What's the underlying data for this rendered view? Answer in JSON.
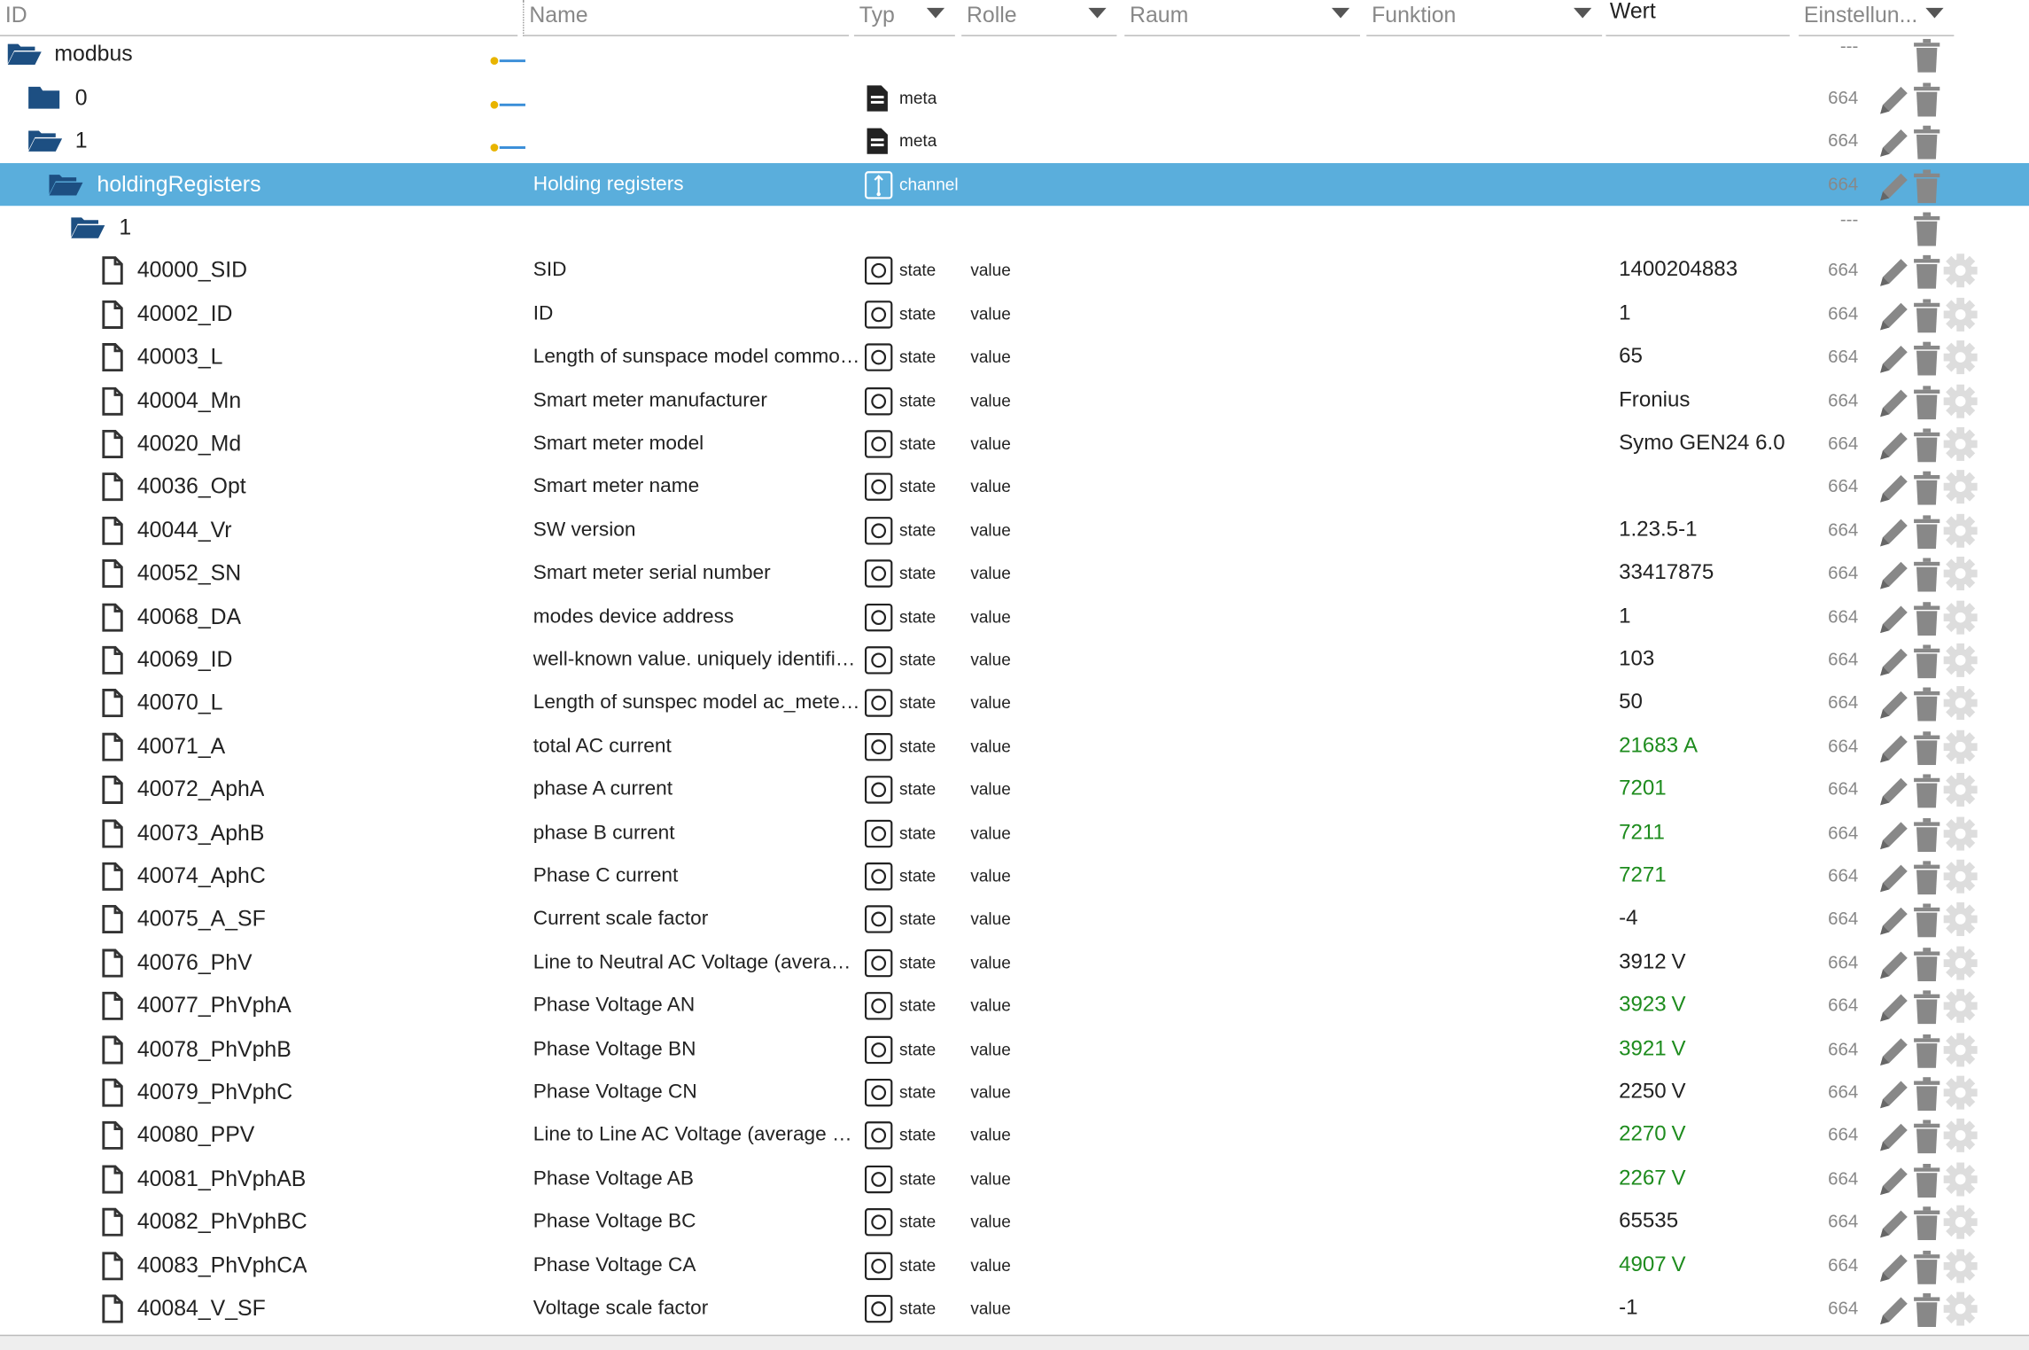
{
  "header": {
    "columns": [
      "ID",
      "Name",
      "Typ",
      "Rolle",
      "Raum",
      "Funktion",
      "Wert",
      "Einstellun..."
    ]
  },
  "rows": [
    {
      "level": 0,
      "kind": "folder-open",
      "id": "modbus",
      "adapter": true,
      "acl": "---"
    },
    {
      "level": 1,
      "kind": "folder",
      "id": "0",
      "adapter": true,
      "type": "meta",
      "acl": "664"
    },
    {
      "level": 1,
      "kind": "folder-open",
      "id": "1",
      "adapter": true,
      "type": "meta",
      "acl": "664"
    },
    {
      "level": 2,
      "kind": "folder-open",
      "id": "holdingRegisters",
      "name": "Holding registers",
      "type": "channel",
      "acl": "664",
      "selected": true
    },
    {
      "level": 3,
      "kind": "folder-open",
      "id": "1",
      "acl": "---"
    },
    {
      "level": 4,
      "kind": "file",
      "id": "40000_SID",
      "name": "SID",
      "type": "state",
      "role": "value",
      "value": "1400204883",
      "acl": "664"
    },
    {
      "level": 4,
      "kind": "file",
      "id": "40002_ID",
      "name": "ID",
      "type": "state",
      "role": "value",
      "value": "1",
      "acl": "664"
    },
    {
      "level": 4,
      "kind": "file",
      "id": "40003_L",
      "name": "Length of sunspace model common...",
      "type": "state",
      "role": "value",
      "value": "65",
      "acl": "664"
    },
    {
      "level": 4,
      "kind": "file",
      "id": "40004_Mn",
      "name": "Smart meter manufacturer",
      "type": "state",
      "role": "value",
      "value": "Fronius",
      "acl": "664"
    },
    {
      "level": 4,
      "kind": "file",
      "id": "40020_Md",
      "name": "Smart meter model",
      "type": "state",
      "role": "value",
      "value": "Symo GEN24 6.0",
      "acl": "664"
    },
    {
      "level": 4,
      "kind": "file",
      "id": "40036_Opt",
      "name": "Smart meter name",
      "type": "state",
      "role": "value",
      "acl": "664"
    },
    {
      "level": 4,
      "kind": "file",
      "id": "40044_Vr",
      "name": "SW version",
      "type": "state",
      "role": "value",
      "value": "1.23.5-1",
      "acl": "664"
    },
    {
      "level": 4,
      "kind": "file",
      "id": "40052_SN",
      "name": "Smart meter serial number",
      "type": "state",
      "role": "value",
      "value": "33417875",
      "acl": "664"
    },
    {
      "level": 4,
      "kind": "file",
      "id": "40068_DA",
      "name": "modes device address",
      "type": "state",
      "role": "value",
      "value": "1",
      "acl": "664"
    },
    {
      "level": 4,
      "kind": "file",
      "id": "40069_ID",
      "name": "well-known value. uniquely identifie...",
      "type": "state",
      "role": "value",
      "value": "103",
      "acl": "664"
    },
    {
      "level": 4,
      "kind": "file",
      "id": "40070_L",
      "name": "Length of sunspec model ac_meter ...",
      "type": "state",
      "role": "value",
      "value": "50",
      "acl": "664"
    },
    {
      "level": 4,
      "kind": "file",
      "id": "40071_A",
      "name": "total AC current",
      "type": "state",
      "role": "value",
      "value": "21683",
      "unit": "A",
      "value_color": "#1e8c1e",
      "acl": "664"
    },
    {
      "level": 4,
      "kind": "file",
      "id": "40072_AphA",
      "name": "phase A current",
      "type": "state",
      "role": "value",
      "value": "7201",
      "value_color": "#1e8c1e",
      "acl": "664"
    },
    {
      "level": 4,
      "kind": "file",
      "id": "40073_AphB",
      "name": "phase B current",
      "type": "state",
      "role": "value",
      "value": "7211",
      "value_color": "#1e8c1e",
      "acl": "664"
    },
    {
      "level": 4,
      "kind": "file",
      "id": "40074_AphC",
      "name": "Phase C current",
      "type": "state",
      "role": "value",
      "value": "7271",
      "value_color": "#1e8c1e",
      "acl": "664"
    },
    {
      "level": 4,
      "kind": "file",
      "id": "40075_A_SF",
      "name": "Current scale factor",
      "type": "state",
      "role": "value",
      "value": "-4",
      "acl": "664"
    },
    {
      "level": 4,
      "kind": "file",
      "id": "40076_PhV",
      "name": "Line to Neutral AC Voltage (average...",
      "type": "state",
      "role": "value",
      "value": "3912",
      "unit": "V",
      "acl": "664"
    },
    {
      "level": 4,
      "kind": "file",
      "id": "40077_PhVphA",
      "name": "Phase Voltage AN",
      "type": "state",
      "role": "value",
      "value": "3923",
      "unit": "V",
      "value_color": "#1e8c1e",
      "acl": "664"
    },
    {
      "level": 4,
      "kind": "file",
      "id": "40078_PhVphB",
      "name": "Phase Voltage BN",
      "type": "state",
      "role": "value",
      "value": "3921",
      "unit": "V",
      "value_color": "#1e8c1e",
      "acl": "664"
    },
    {
      "level": 4,
      "kind": "file",
      "id": "40079_PhVphC",
      "name": "Phase Voltage CN",
      "type": "state",
      "role": "value",
      "value": "2250",
      "unit": "V",
      "acl": "664"
    },
    {
      "level": 4,
      "kind": "file",
      "id": "40080_PPV",
      "name": "Line to Line AC Voltage (average of...",
      "type": "state",
      "role": "value",
      "value": "2270",
      "unit": "V",
      "value_color": "#1e8c1e",
      "acl": "664"
    },
    {
      "level": 4,
      "kind": "file",
      "id": "40081_PhVphAB",
      "name": "Phase Voltage AB",
      "type": "state",
      "role": "value",
      "value": "2267",
      "unit": "V",
      "value_color": "#1e8c1e",
      "acl": "664"
    },
    {
      "level": 4,
      "kind": "file",
      "id": "40082_PhVphBC",
      "name": "Phase Voltage BC",
      "type": "state",
      "role": "value",
      "value": "65535",
      "acl": "664"
    },
    {
      "level": 4,
      "kind": "file",
      "id": "40083_PhVphCA",
      "name": "Phase Voltage CA",
      "type": "state",
      "role": "value",
      "value": "4907",
      "unit": "V",
      "value_color": "#1e8c1e",
      "acl": "664"
    },
    {
      "level": 4,
      "kind": "file",
      "id": "40084_V_SF",
      "name": "Voltage scale factor",
      "type": "state",
      "role": "value",
      "value": "-1",
      "acl": "664"
    }
  ]
}
